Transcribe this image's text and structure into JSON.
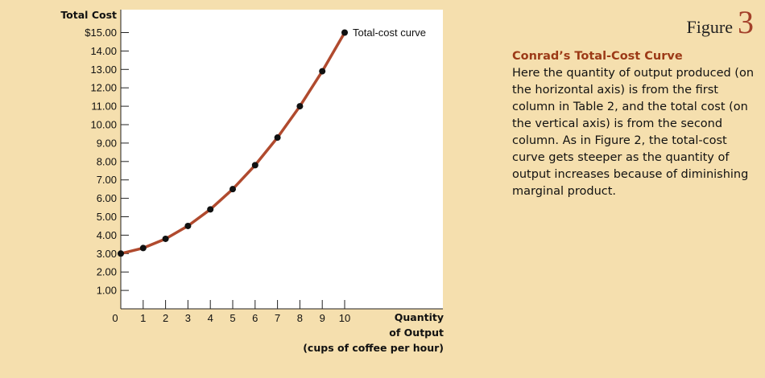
{
  "figure": {
    "word": "Figure",
    "number": "3"
  },
  "caption": {
    "title": "Conrad’s Total-Cost Curve",
    "text": "Here the quantity of output produced (on the horizontal axis) is from the first column in Table 2, and the total cost (on the vertical axis) is from the second column. As in Figure 2, the total-cost curve gets steeper as the quantity of output increases because of diminishing marginal product."
  },
  "chart_data": {
    "type": "line",
    "ylabel": "Total Cost",
    "xlabel_lines": [
      "Quantity",
      "of Output",
      "(cups of coffee per hour)"
    ],
    "x": [
      0,
      1,
      2,
      3,
      4,
      5,
      6,
      7,
      8,
      9,
      10
    ],
    "y": [
      3.0,
      3.3,
      3.8,
      4.5,
      5.4,
      6.5,
      7.8,
      9.3,
      11.0,
      12.9,
      15.0
    ],
    "xlim": [
      0,
      10
    ],
    "ylim": [
      0,
      15
    ],
    "x_ticks": [
      "0",
      "1",
      "2",
      "3",
      "4",
      "5",
      "6",
      "7",
      "8",
      "9",
      "10"
    ],
    "y_ticks": [
      "1.00",
      "2.00",
      "3.00",
      "4.00",
      "5.00",
      "6.00",
      "7.00",
      "8.00",
      "9.00",
      "10.00",
      "11.00",
      "12.00",
      "13.00",
      "14.00",
      "$15.00"
    ],
    "series": [
      {
        "name": "Total-cost curve"
      }
    ],
    "colors": {
      "line": "#b04a2e",
      "point": "#111111",
      "plot_bg": "#ffffff"
    },
    "grid": false
  }
}
